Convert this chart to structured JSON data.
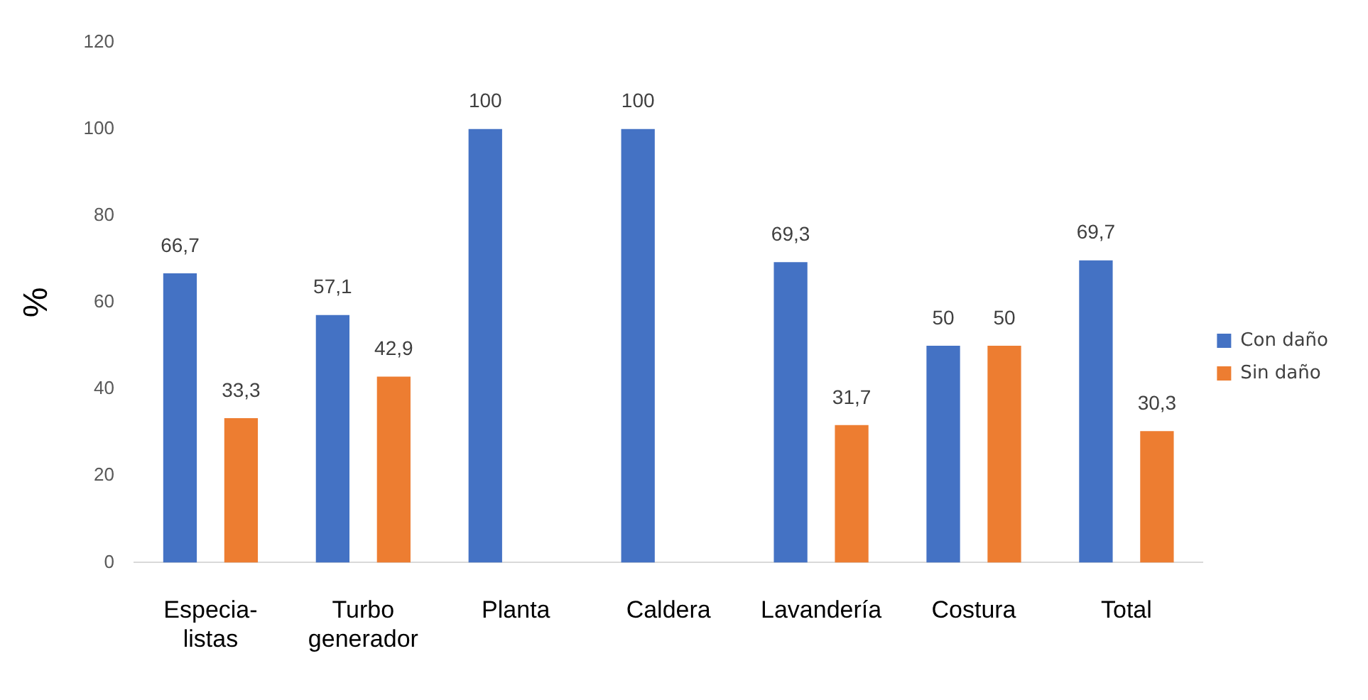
{
  "chart_data": {
    "type": "bar",
    "ylabel": "%",
    "categories": [
      "Especia-\nlistas",
      "Turbo\ngenerador",
      "Planta",
      "Caldera",
      "Lavandería",
      "Costura",
      "Total"
    ],
    "series": [
      {
        "name": "Con daño",
        "color": "#4472c4",
        "values": [
          66.7,
          57.1,
          100,
          100,
          69.3,
          50,
          69.7
        ],
        "value_labels": [
          "66,7",
          "57,1",
          "100",
          "100",
          "69,3",
          "50",
          "69,7"
        ]
      },
      {
        "name": "Sin daño",
        "color": "#ed7d31",
        "values": [
          33.3,
          42.9,
          null,
          null,
          31.7,
          50,
          30.3
        ],
        "value_labels": [
          "33,3",
          "42,9",
          null,
          null,
          "31,7",
          "50",
          "30,3"
        ]
      }
    ],
    "ylim": [
      0,
      120
    ],
    "yticks": [
      0,
      20,
      40,
      60,
      80,
      100,
      120
    ],
    "grid": false,
    "legend": "right"
  }
}
